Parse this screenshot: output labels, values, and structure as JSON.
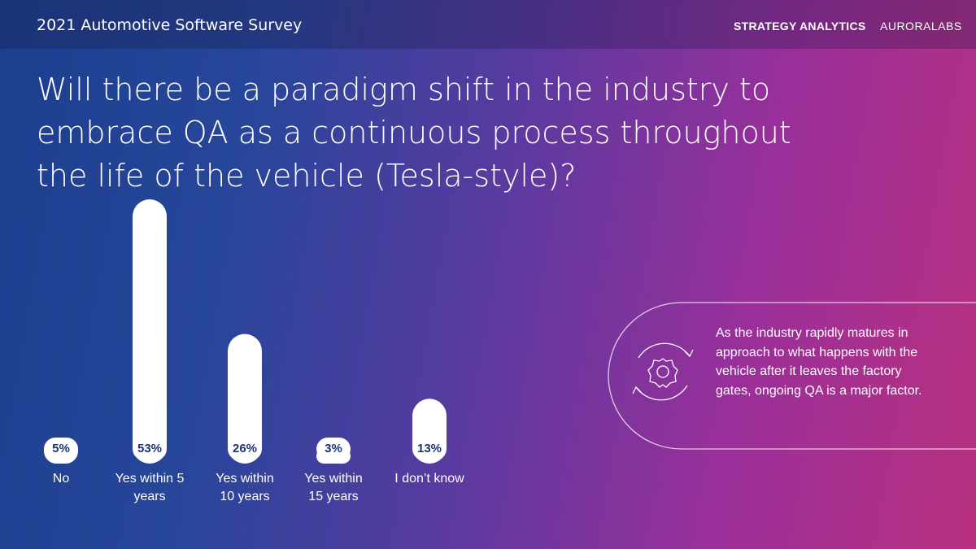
{
  "header": {
    "title": "2021 Automotive Software Survey",
    "brand": "STRATEGY ANALYTICS",
    "logo": "AURORALABS"
  },
  "chart_data": {
    "type": "bar",
    "title": "Will there be a paradigm shift in the industry to embrace QA as a continuous process throughout the life of the vehicle (Tesla-style)?",
    "categories": [
      "No",
      "Yes within 5 years",
      "Yes within 10 years",
      "Yes within 15 years",
      "I don’t know"
    ],
    "values": [
      5,
      53,
      26,
      3,
      13
    ],
    "value_labels": [
      "5%",
      "53%",
      "26%",
      "3%",
      "13%"
    ],
    "color": "#ffffff"
  },
  "callout": {
    "text": "As the industry rapidly matures in approach to what happens with the vehicle after it leaves the factory gates, ongoing QA is a major factor."
  }
}
